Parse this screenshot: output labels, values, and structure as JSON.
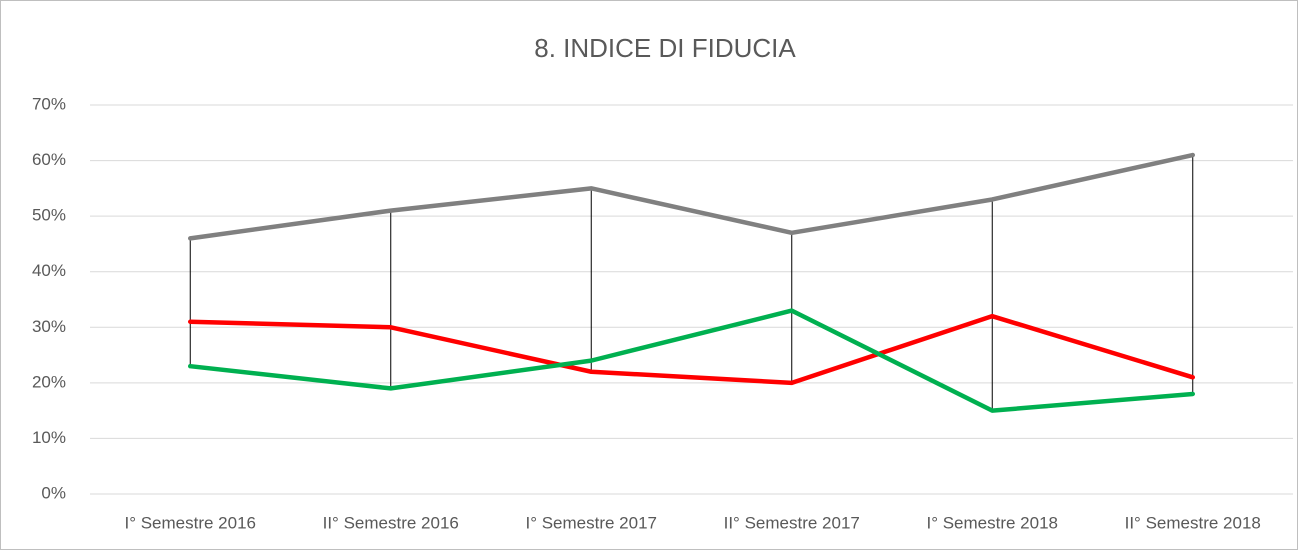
{
  "chart_data": {
    "type": "line",
    "title": "8. INDICE DI FIDUCIA",
    "categories": [
      "I° Semestre 2016",
      "II° Semestre 2016",
      "I° Semestre 2017",
      "II° Semestre 2017",
      "I° Semestre 2018",
      "II° Semestre 2018"
    ],
    "series": [
      {
        "color": "#808080",
        "values": [
          46,
          51,
          55,
          47,
          53,
          61
        ]
      },
      {
        "color": "#ff0000",
        "values": [
          31,
          30,
          22,
          20,
          32,
          21
        ]
      },
      {
        "color": "#00b050",
        "values": [
          23,
          19,
          24,
          33,
          15,
          18
        ]
      }
    ],
    "ylim": [
      0,
      70
    ],
    "yticks": [
      {
        "value": 0,
        "label": "0%"
      },
      {
        "value": 10,
        "label": "10%"
      },
      {
        "value": 20,
        "label": "20%"
      },
      {
        "value": 30,
        "label": "30%"
      },
      {
        "value": 40,
        "label": "40%"
      },
      {
        "value": 50,
        "label": "50%"
      },
      {
        "value": 60,
        "label": "60%"
      },
      {
        "value": 70,
        "label": "70%"
      }
    ],
    "grid": true,
    "high_low_lines": true
  }
}
